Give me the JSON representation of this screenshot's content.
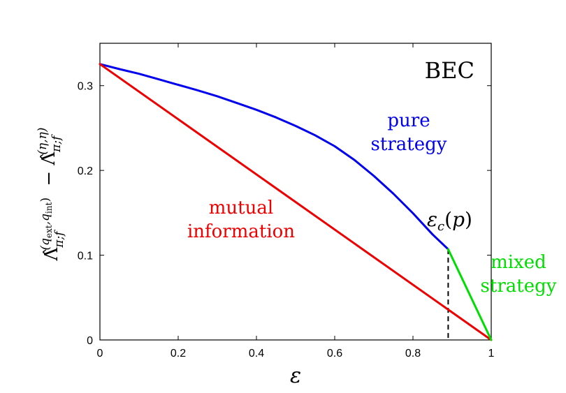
{
  "chart_data": {
    "type": "line",
    "title": "BEC",
    "xlabel": "ε",
    "ylabel": "Λ̂π;f(qext,qint) − Λ̂π;f(η,η)",
    "xlim": [
      0,
      1
    ],
    "ylim": [
      0,
      0.35
    ],
    "x_ticks": [
      "0",
      "0.2",
      "0.4",
      "0.6",
      "0.8",
      "1"
    ],
    "y_ticks": [
      "0",
      "0.1",
      "0.2",
      "0.3"
    ],
    "colors": {
      "pure": "#0000ee",
      "mutual": "#ee0000",
      "mixed": "#00dd00",
      "marker": "#000000"
    },
    "series": [
      {
        "key": "pure",
        "x": [
          0,
          0.05,
          0.1,
          0.15,
          0.2,
          0.25,
          0.3,
          0.35,
          0.4,
          0.45,
          0.5,
          0.55,
          0.6,
          0.65,
          0.7,
          0.75,
          0.8,
          0.85,
          0.89
        ],
        "y": [
          0.3255,
          0.3195,
          0.314,
          0.3075,
          0.301,
          0.2945,
          0.2875,
          0.2795,
          0.2715,
          0.2625,
          0.2525,
          0.2415,
          0.2285,
          0.2125,
          0.1935,
          0.1725,
          0.1495,
          0.1245,
          0.107
        ]
      },
      {
        "key": "mutual",
        "x": [
          0,
          1
        ],
        "y": [
          0.3255,
          0
        ]
      },
      {
        "key": "mixed",
        "x": [
          0.89,
          1
        ],
        "y": [
          0.107,
          0
        ]
      }
    ],
    "annotations": {
      "pure": [
        "pure",
        "strategy"
      ],
      "mutual": [
        "mutual",
        "information"
      ],
      "mixed": [
        "mixed",
        "strategy"
      ],
      "threshold": {
        "x": 0.89
      }
    }
  }
}
